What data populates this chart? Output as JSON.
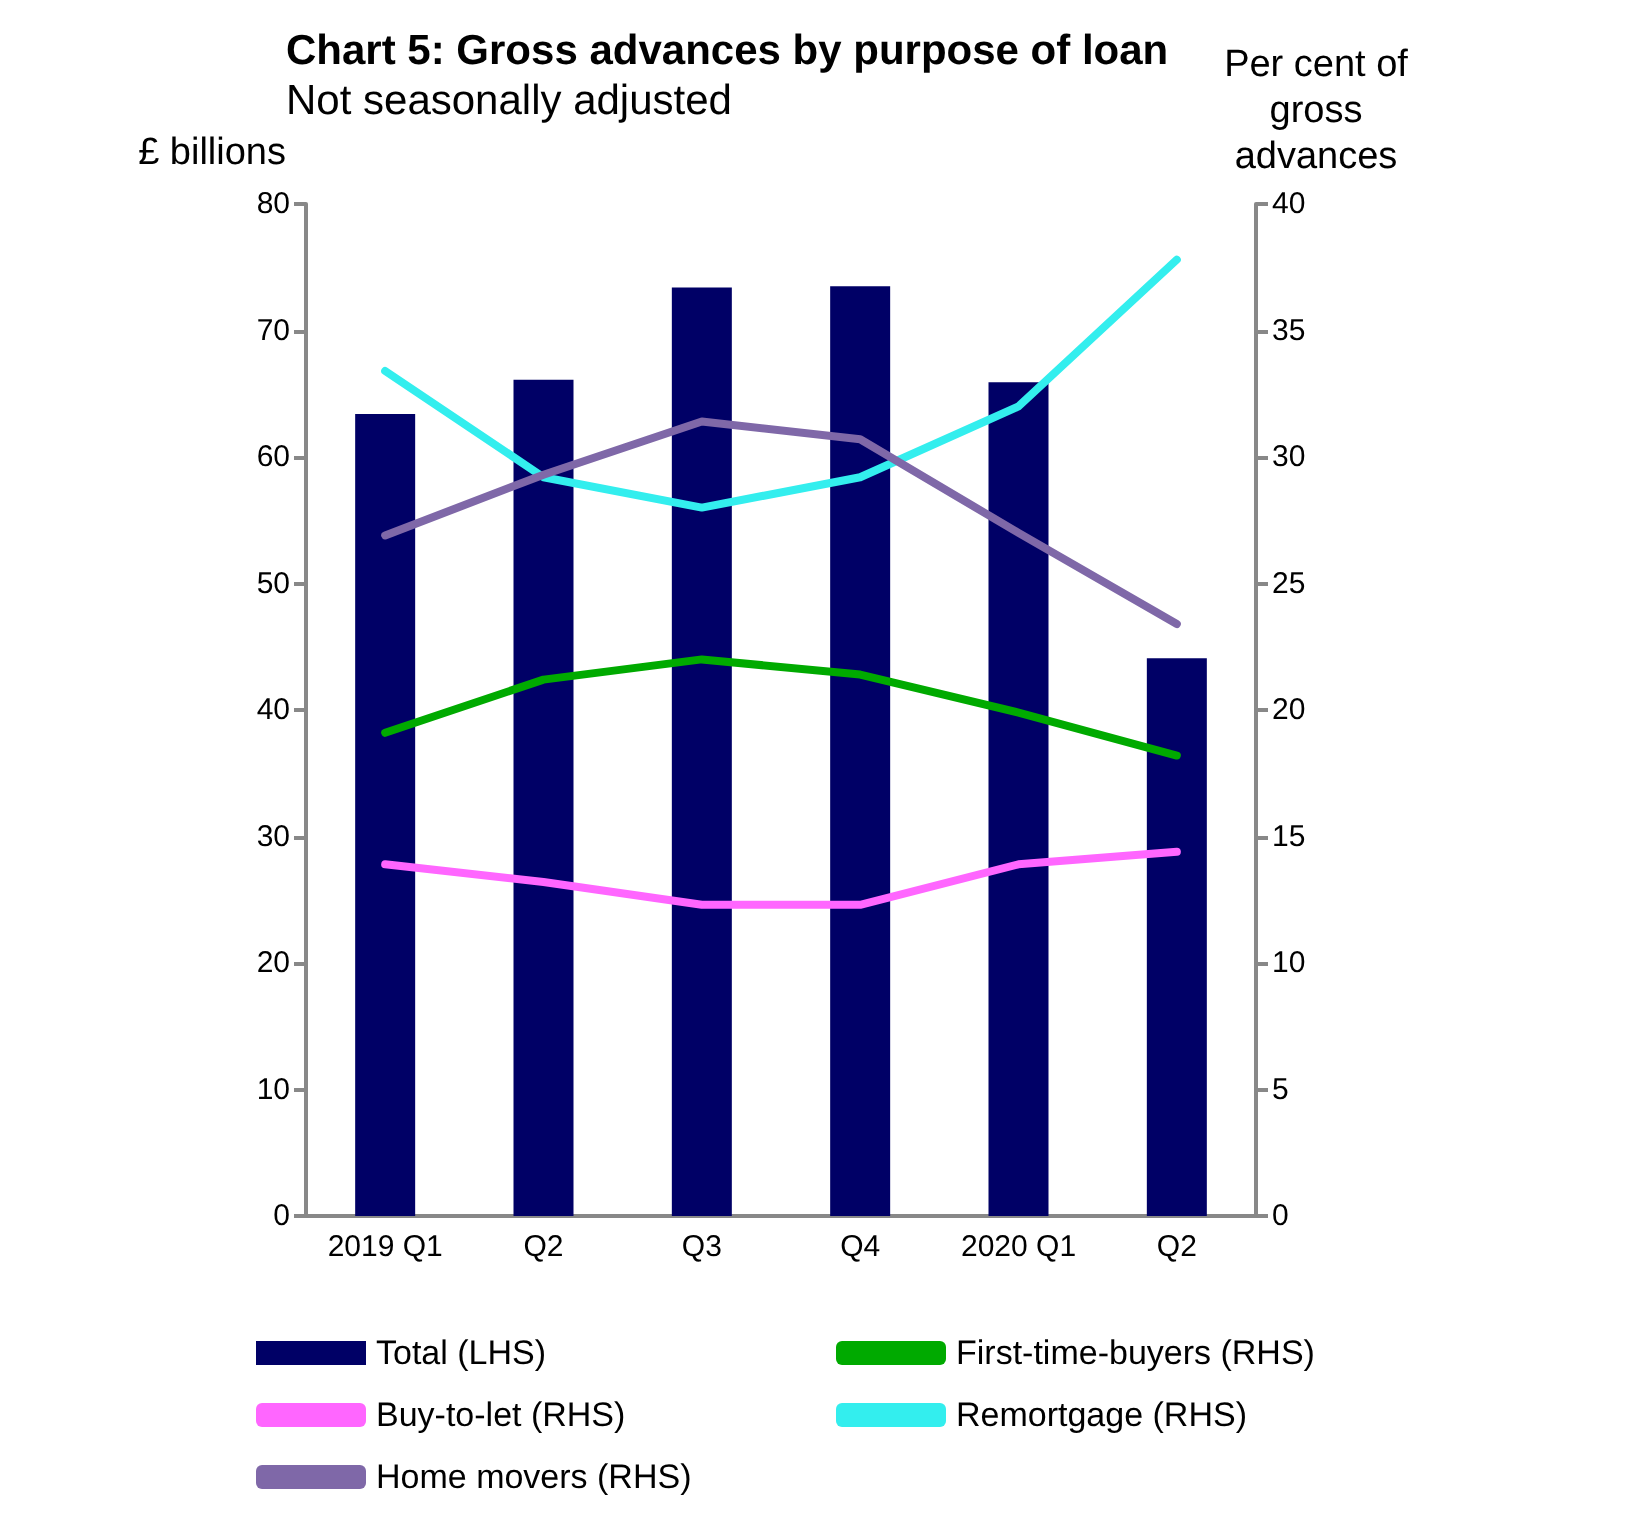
{
  "chart_data": {
    "type": "bar",
    "title": "Chart 5: Gross advances by purpose of loan",
    "subtitle": "Not seasonally adjusted",
    "ylabel": "£ billions",
    "y2label": "Per cent of\ngross\nadvances",
    "categories": [
      "2019 Q1",
      "Q2",
      "Q3",
      "Q4",
      "2020 Q1",
      "Q2"
    ],
    "series": [
      {
        "name": "Total (LHS)",
        "color": "#000066",
        "values": [
          63.4,
          66.1,
          73.4,
          73.5,
          65.9,
          44.1
        ]
      },
      {
        "name": "First-time-buyers (RHS)",
        "type": "line",
        "axis": "y2",
        "color": "#00aa00",
        "values": [
          19.1,
          21.2,
          22.0,
          21.4,
          19.9,
          18.2
        ]
      },
      {
        "name": "Buy-to-let (RHS)",
        "type": "line",
        "axis": "y2",
        "color": "#ff66ff",
        "values": [
          13.9,
          13.2,
          12.3,
          12.3,
          13.9,
          14.4
        ]
      },
      {
        "name": "Remortgage (RHS)",
        "type": "line",
        "axis": "y2",
        "color": "#33eeee",
        "values": [
          33.4,
          29.2,
          28.0,
          29.2,
          32.0,
          37.8
        ]
      },
      {
        "name": "Home movers (RHS)",
        "type": "line",
        "axis": "y2",
        "color": "#7f68a8",
        "values": [
          26.9,
          29.3,
          31.4,
          30.7,
          27.0,
          23.4
        ]
      }
    ],
    "ylim": [
      0,
      80
    ],
    "yticks": [
      0,
      10,
      20,
      30,
      40,
      50,
      60,
      70,
      80
    ],
    "y2lim": [
      0,
      40
    ],
    "y2ticks": [
      0,
      5,
      10,
      15,
      20,
      25,
      30,
      35,
      40
    ],
    "grid": false,
    "legend": "bottom",
    "marker": "none",
    "line_style": "solid"
  }
}
